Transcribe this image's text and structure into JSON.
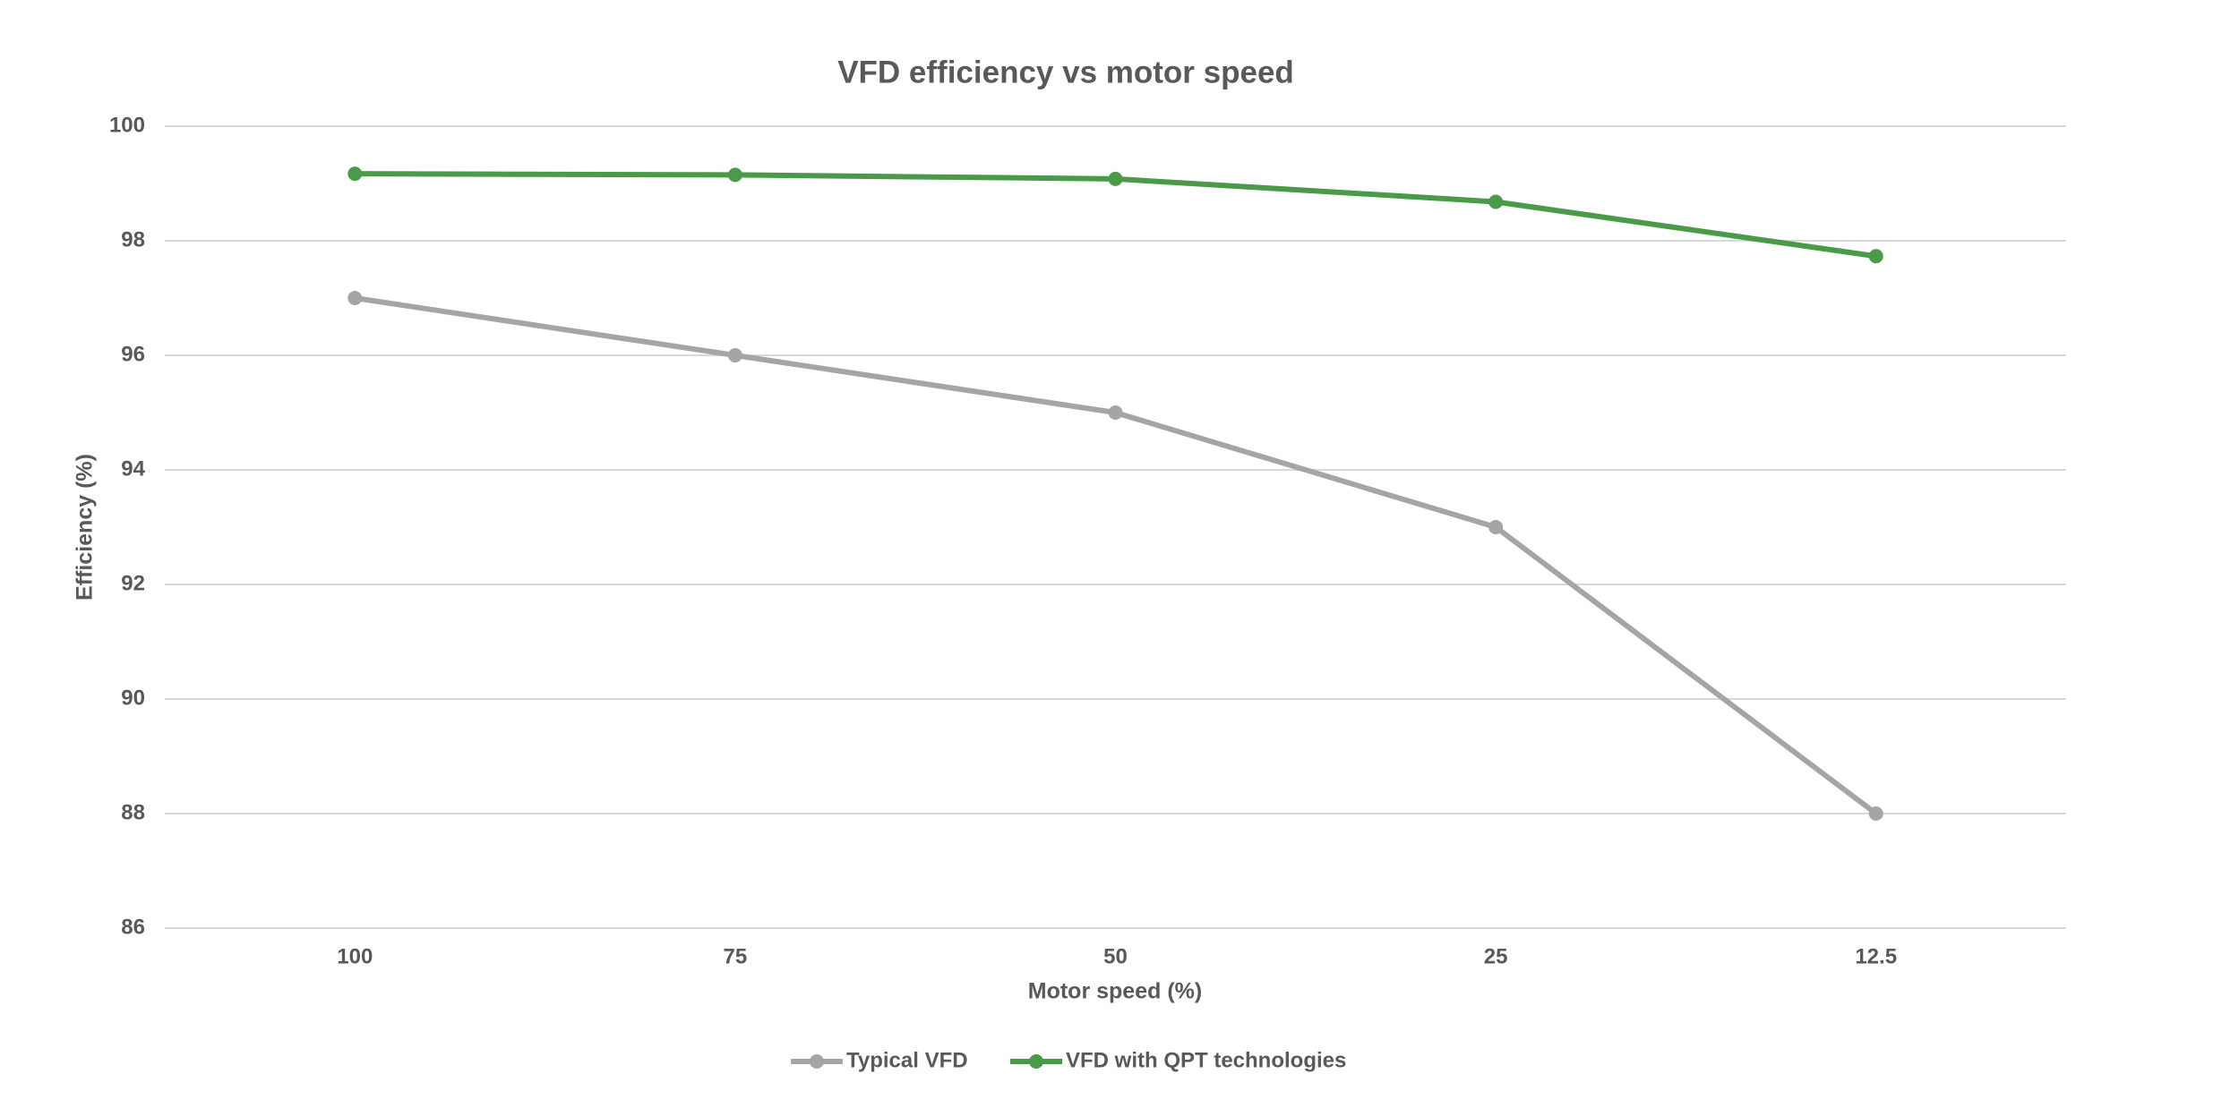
{
  "chart_data": {
    "type": "line",
    "title": "VFD efficiency vs motor speed",
    "x_label": "Motor speed (%)",
    "y_label": "Efficiency (%)",
    "categories": [
      "100",
      "75",
      "50",
      "25",
      "12.5"
    ],
    "series": [
      {
        "name": "Typical VFD",
        "color": "#a5a5a5",
        "values": [
          97,
          96,
          95,
          93,
          88
        ]
      },
      {
        "name": "VFD with QPT technologies",
        "color": "#4a9a4a",
        "values": [
          99.17,
          99.15,
          99.08,
          98.68,
          97.73
        ]
      }
    ],
    "ylim": [
      86,
      100
    ],
    "yticks": [
      86,
      88,
      90,
      92,
      94,
      96,
      98,
      100
    ],
    "grid": true,
    "legend": "bottom"
  }
}
